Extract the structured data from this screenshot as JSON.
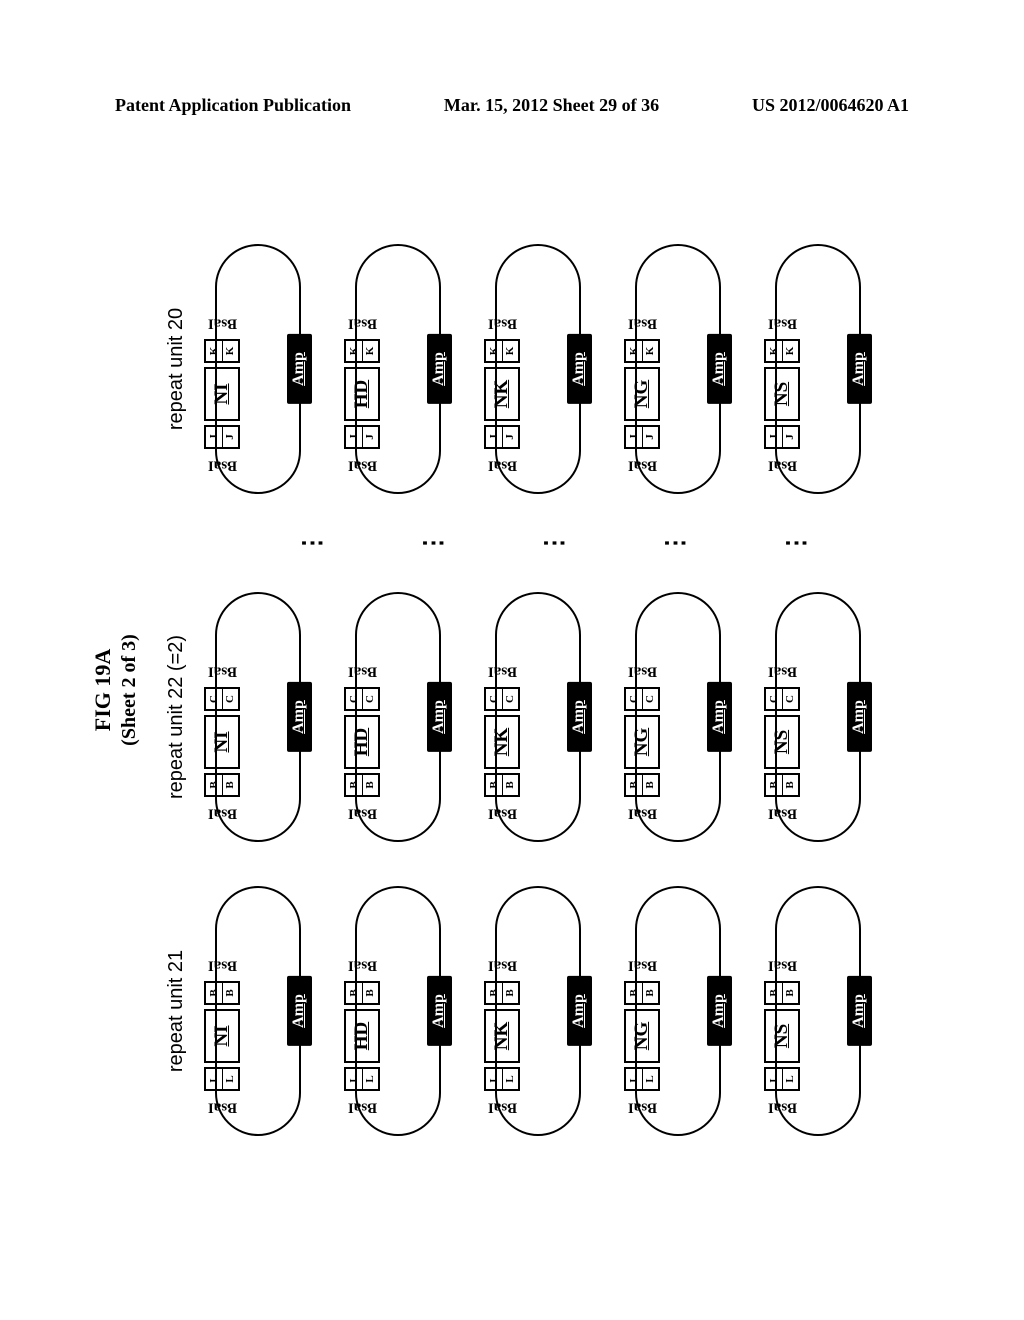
{
  "header": {
    "left": "Patent Application Publication",
    "center": "Mar. 15, 2012  Sheet 29 of 36",
    "right": "US 2012/0064620 A1"
  },
  "figure": {
    "title": "FIG 19A",
    "subtitle": "(Sheet 2 of 3)"
  },
  "columns": [
    {
      "title": "repeat unit 21",
      "overhang_left": "L",
      "overhang_right": "B"
    },
    {
      "title": "repeat unit 22 (=2)",
      "overhang_left": "B",
      "overhang_right": "C"
    },
    {
      "title": "repeat unit 20",
      "overhang_left": "J",
      "overhang_right": "K"
    }
  ],
  "rvds": [
    "NI",
    "HD",
    "NK",
    "NG",
    "NS"
  ],
  "enzyme_label": "BsaI",
  "amp_label": "Amp",
  "ellipsis": "⋮",
  "colors": {
    "black": "#000000",
    "white": "#ffffff"
  }
}
